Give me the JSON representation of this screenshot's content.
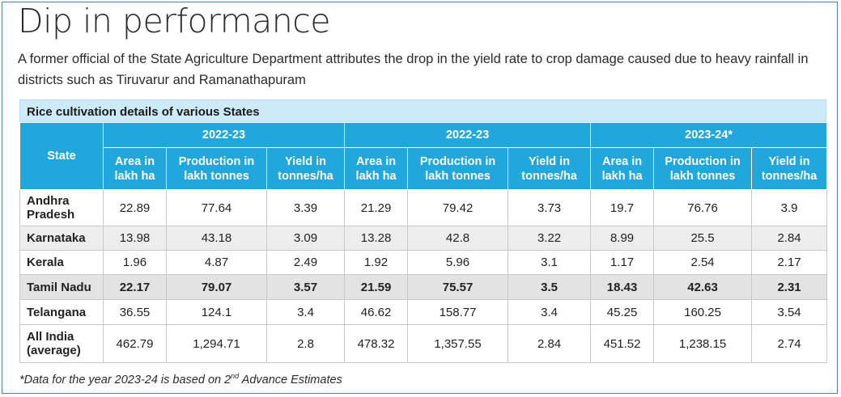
{
  "title": "Dip in performance",
  "subtitle": "A former official of the State Agriculture Department attributes the drop in the yield rate to crop damage caused due to heavy rainfall in districts such as Tiruvarur and Ramanathapuram",
  "table": {
    "caption": "Rice cultivation details of various States",
    "state_header": "State",
    "groups": [
      "2022-23",
      "2022-23",
      "2023-24*"
    ],
    "sub_headers": {
      "area": "Area in lakh ha",
      "production": "Production in lakh tonnes",
      "yield": "Yield in tonnes/ha"
    },
    "rows": [
      {
        "state": "Andhra Pradesh",
        "values": [
          "22.89",
          "77.64",
          "3.39",
          "21.29",
          "79.42",
          "3.73",
          "19.7",
          "76.76",
          "3.9"
        ]
      },
      {
        "state": "Karnataka",
        "values": [
          "13.98",
          "43.18",
          "3.09",
          "13.28",
          "42.8",
          "3.22",
          "8.99",
          "25.5",
          "2.84"
        ]
      },
      {
        "state": "Kerala",
        "values": [
          "1.96",
          "4.87",
          "2.49",
          "1.92",
          "5.96",
          "3.1",
          "1.17",
          "2.54",
          "2.17"
        ]
      },
      {
        "state": "Tamil Nadu",
        "values": [
          "22.17",
          "79.07",
          "3.57",
          "21.59",
          "75.57",
          "3.5",
          "18.43",
          "42.63",
          "2.31"
        ]
      },
      {
        "state": "Telangana",
        "values": [
          "36.55",
          "124.1",
          "3.4",
          "46.62",
          "158.77",
          "3.4",
          "45.25",
          "160.25",
          "3.54"
        ]
      },
      {
        "state": "All India (average)",
        "values": [
          "462.79",
          "1,294.71",
          "2.8",
          "478.32",
          "1,357.55",
          "2.84",
          "451.52",
          "1,238.15",
          "2.74"
        ]
      }
    ]
  },
  "footnote": {
    "before": "*Data for the year 2023-24 is based on  2",
    "sup": "nd",
    "after": " Advance Estimates"
  },
  "colors": {
    "header_bg": "#22a7dc",
    "caption_bg": "#cdeaf8",
    "highlight_row_bg": "#e3e3e3",
    "frame_border": "#4a7fc1"
  }
}
